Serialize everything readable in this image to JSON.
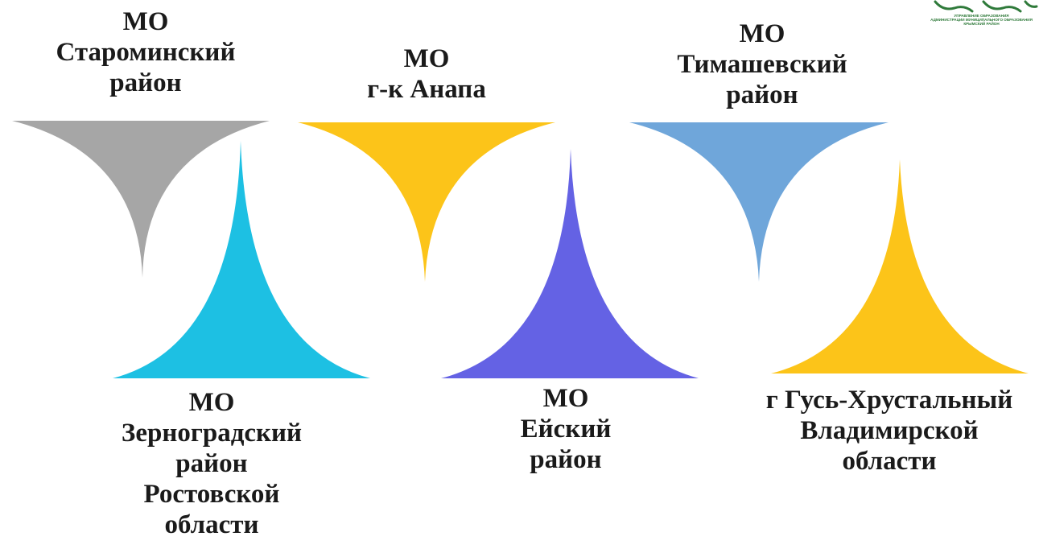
{
  "shapes": [
    {
      "id": "staro",
      "color": "#a6a6a6",
      "direction": "down"
    },
    {
      "id": "zerno",
      "color": "#1dc0e3",
      "direction": "up"
    },
    {
      "id": "anapa",
      "color": "#fcc419",
      "direction": "down"
    },
    {
      "id": "eysk",
      "color": "#6462e4",
      "direction": "up"
    },
    {
      "id": "timash",
      "color": "#6fa6da",
      "direction": "down"
    },
    {
      "id": "gus",
      "color": "#fcc419",
      "direction": "up"
    }
  ],
  "labels": {
    "staro": [
      "МО",
      "Староминский",
      "район"
    ],
    "anapa": [
      "МО",
      "г-к Анапа"
    ],
    "timash": [
      "МО",
      "Тимашевский",
      "район"
    ],
    "zerno": [
      "МО",
      "Зерноградский",
      "район",
      "Ростовской",
      "области"
    ],
    "eysk": [
      "МО",
      "Ейский",
      "район"
    ],
    "gus": [
      "г Гусь-Хрустальный",
      "Владимирской",
      "области"
    ]
  },
  "logo": {
    "icon": "education-emblem-icon",
    "color": "#2f7a3a",
    "lines": [
      "УПРАВЛЕНИЕ ОБРАЗОВАНИЯ",
      "АДМИНИСТРАЦИИ МУНИЦИПАЛЬНОГО ОБРАЗОВАНИЯ",
      "КРЫМСКИЙ РАЙОН"
    ]
  }
}
